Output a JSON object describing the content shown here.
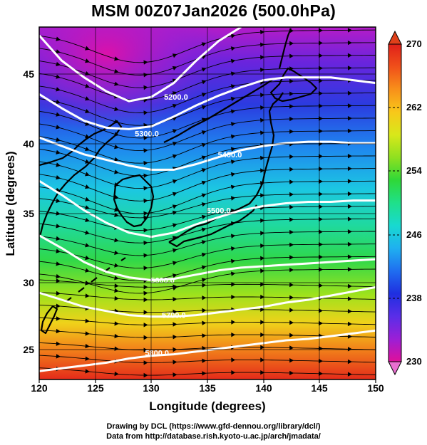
{
  "title": "MSM 00Z07Jan2026 (500.0hPa)",
  "xlabel": "Longitude (degrees)",
  "ylabel": "Latitude  (degrees)",
  "footer": {
    "line1": "Drawing by DCL (https://www.gfd-dennou.org/library/dcl/)",
    "line2": "Data from http://database.rish.kyoto-u.ac.jp/arch/jmadata/"
  },
  "x_ticks": [
    "120",
    "125",
    "130",
    "135",
    "140",
    "145",
    "150"
  ],
  "y_ticks": [
    "25",
    "30",
    "35",
    "40",
    "45"
  ],
  "colorbar": {
    "min": 230,
    "max": 270,
    "ticks": [
      "270",
      "262",
      "254",
      "246",
      "238",
      "230"
    ],
    "colors": [
      "#e0109a",
      "#9b1fd6",
      "#5a2ee8",
      "#1f2fe0",
      "#1f6ef0",
      "#1fb0f0",
      "#18d9d0",
      "#1fe08a",
      "#2fd838",
      "#8fe020",
      "#d8e81a",
      "#f8c81a",
      "#f8901a",
      "#f0501a",
      "#e0201a"
    ]
  },
  "contours": [
    {
      "label": "5200.0",
      "value": 5200
    },
    {
      "label": "5300.0",
      "value": 5300
    },
    {
      "label": "5400.0",
      "value": 5400
    },
    {
      "label": "5500.0",
      "value": 5500
    },
    {
      "label": "5600.0",
      "value": 5600
    },
    {
      "label": "5700.0",
      "value": 5700
    },
    {
      "label": "5800.0",
      "value": 5800
    }
  ],
  "chart_data": {
    "type": "heatmap",
    "title": "MSM 00Z07Jan2026 (500.0hPa)",
    "xlabel": "Longitude (degrees)",
    "ylabel": "Latitude  (degrees)",
    "xlim": [
      120,
      150
    ],
    "ylim": [
      22.4,
      47.6
    ],
    "color_range": [
      230,
      270
    ],
    "contour_levels": [
      5200,
      5300,
      5400,
      5500,
      5600,
      5700,
      5800
    ],
    "contour_paths": [
      [
        [
          120.0,
          47.0
        ],
        [
          122.0,
          45.2
        ],
        [
          124.0,
          44.0
        ],
        [
          126.0,
          43.0
        ],
        [
          128.0,
          42.3
        ],
        [
          130.0,
          42.6
        ],
        [
          132.0,
          43.6
        ],
        [
          134.0,
          45.2
        ],
        [
          136.0,
          46.6
        ],
        [
          138.0,
          47.6
        ]
      ],
      [
        [
          120.0,
          42.8
        ],
        [
          122.0,
          41.8
        ],
        [
          124.0,
          40.9
        ],
        [
          126.0,
          40.4
        ],
        [
          128.0,
          40.3
        ],
        [
          130.0,
          40.5
        ],
        [
          132.0,
          41.2
        ],
        [
          134.0,
          42.0
        ],
        [
          136.0,
          42.7
        ],
        [
          138.0,
          43.3
        ],
        [
          140.0,
          43.8
        ],
        [
          142.0,
          44.0
        ],
        [
          144.0,
          44.0
        ],
        [
          146.0,
          44.0
        ],
        [
          148.0,
          43.8
        ],
        [
          150.0,
          43.6
        ]
      ],
      [
        [
          120.0,
          39.7
        ],
        [
          122.0,
          39.1
        ],
        [
          124.0,
          38.5
        ],
        [
          126.0,
          38.1
        ],
        [
          128.0,
          37.7
        ],
        [
          130.0,
          37.4
        ],
        [
          132.0,
          37.4
        ],
        [
          134.0,
          37.8
        ],
        [
          136.0,
          38.3
        ],
        [
          138.0,
          38.8
        ],
        [
          140.0,
          39.1
        ],
        [
          142.0,
          39.3
        ],
        [
          144.0,
          39.4
        ],
        [
          146.0,
          39.4
        ],
        [
          148.0,
          39.3
        ],
        [
          150.0,
          39.3
        ]
      ],
      [
        [
          120.0,
          36.6
        ],
        [
          122.0,
          35.6
        ],
        [
          124.0,
          34.5
        ],
        [
          126.0,
          33.6
        ],
        [
          128.0,
          32.9
        ],
        [
          130.0,
          32.6
        ],
        [
          132.0,
          32.9
        ],
        [
          134.0,
          33.5
        ],
        [
          136.0,
          34.0
        ],
        [
          138.0,
          34.5
        ],
        [
          140.0,
          34.8
        ],
        [
          142.0,
          35.0
        ],
        [
          144.0,
          35.1
        ],
        [
          146.0,
          35.1
        ],
        [
          148.0,
          35.2
        ],
        [
          150.0,
          35.2
        ]
      ],
      [
        [
          120.0,
          32.7
        ],
        [
          122.0,
          31.8
        ],
        [
          124.0,
          30.8
        ],
        [
          126.0,
          30.1
        ],
        [
          128.0,
          29.7
        ],
        [
          130.0,
          29.5
        ],
        [
          132.0,
          29.6
        ],
        [
          134.0,
          29.9
        ],
        [
          136.0,
          30.2
        ],
        [
          138.0,
          30.4
        ],
        [
          140.0,
          30.5
        ],
        [
          142.0,
          30.6
        ],
        [
          144.0,
          30.7
        ],
        [
          146.0,
          30.8
        ],
        [
          148.0,
          30.9
        ],
        [
          150.0,
          31.0
        ]
      ],
      [
        [
          120.0,
          28.6
        ],
        [
          122.0,
          28.1
        ],
        [
          124.0,
          27.6
        ],
        [
          126.0,
          27.3
        ],
        [
          128.0,
          27.0
        ],
        [
          130.0,
          26.9
        ],
        [
          132.0,
          26.9
        ],
        [
          134.0,
          27.0
        ],
        [
          136.0,
          27.2
        ],
        [
          138.0,
          27.4
        ],
        [
          140.0,
          27.6
        ],
        [
          142.0,
          27.9
        ],
        [
          144.0,
          28.1
        ],
        [
          146.0,
          28.4
        ],
        [
          148.0,
          28.7
        ],
        [
          150.0,
          29.0
        ]
      ],
      [
        [
          120.0,
          23.0
        ],
        [
          122.0,
          23.2
        ],
        [
          124.0,
          23.4
        ],
        [
          126.0,
          23.6
        ],
        [
          128.0,
          23.9
        ],
        [
          130.0,
          24.1
        ],
        [
          132.0,
          24.2
        ],
        [
          134.0,
          24.4
        ],
        [
          136.0,
          24.6
        ],
        [
          138.0,
          24.8
        ],
        [
          140.0,
          25.0
        ],
        [
          142.0,
          25.2
        ],
        [
          144.0,
          25.3
        ],
        [
          146.0,
          25.5
        ],
        [
          148.0,
          25.7
        ],
        [
          150.0,
          25.9
        ]
      ]
    ],
    "contour_label_points": [
      [
        132.2,
        42.6
      ],
      [
        129.6,
        40.0
      ],
      [
        137.0,
        38.5
      ],
      [
        136.0,
        34.5
      ],
      [
        131.0,
        29.5
      ],
      [
        132.0,
        27.0
      ],
      [
        130.5,
        24.3
      ]
    ]
  }
}
